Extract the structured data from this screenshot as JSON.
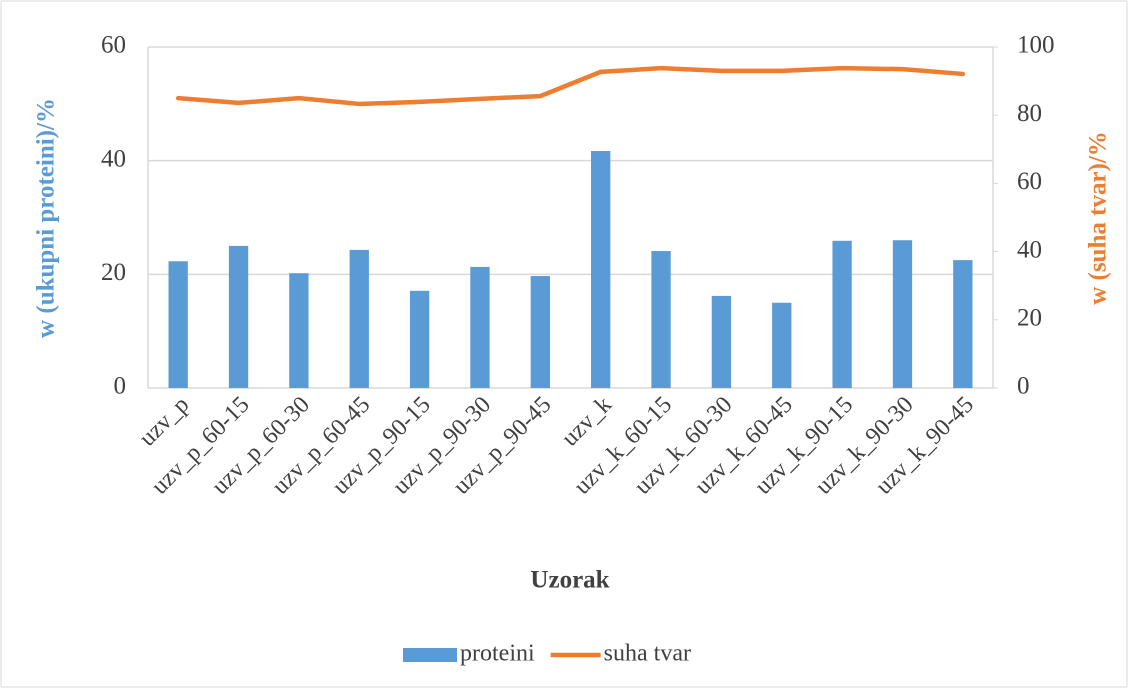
{
  "chart_data": {
    "type": "combo",
    "categories": [
      "uzv_p",
      "uzv_p_60-15",
      "uzv_p_60-30",
      "uzv_p_60-45",
      "uzv_p_90-15",
      "uzv_p_90-30",
      "uzv_p_90-45",
      "uzv_k",
      "uzv_k_60-15",
      "uzv_k_60-30",
      "uzv_k_60-45",
      "uzv_k_90-15",
      "uzv_k_90-30",
      "uzv_k_90-45"
    ],
    "series": [
      {
        "name": "proteini",
        "type": "bar",
        "color": "#5b9bd5",
        "axis": "y",
        "values": [
          22.3,
          25.0,
          20.2,
          24.3,
          17.1,
          21.3,
          19.7,
          41.7,
          24.1,
          16.2,
          15.0,
          25.9,
          26.0,
          22.5
        ]
      },
      {
        "name": "suha tvar",
        "type": "line",
        "color": "#ed7d31",
        "axis": "y2",
        "values": [
          85.0,
          83.6,
          85.0,
          83.3,
          83.9,
          84.8,
          85.6,
          92.7,
          93.8,
          93.0,
          93.0,
          93.8,
          93.5,
          92.1
        ]
      }
    ],
    "xlabel": "Uzorak",
    "ylabel": "w (ukupni proteini)/%",
    "y2label": "w (suha tvar)/%",
    "ylim": [
      0,
      60
    ],
    "yticks": [
      0,
      20,
      40,
      60
    ],
    "y2lim": [
      0,
      100
    ],
    "y2ticks": [
      0,
      20,
      40,
      60,
      80,
      100
    ],
    "grid": true,
    "legend": "bottom"
  }
}
